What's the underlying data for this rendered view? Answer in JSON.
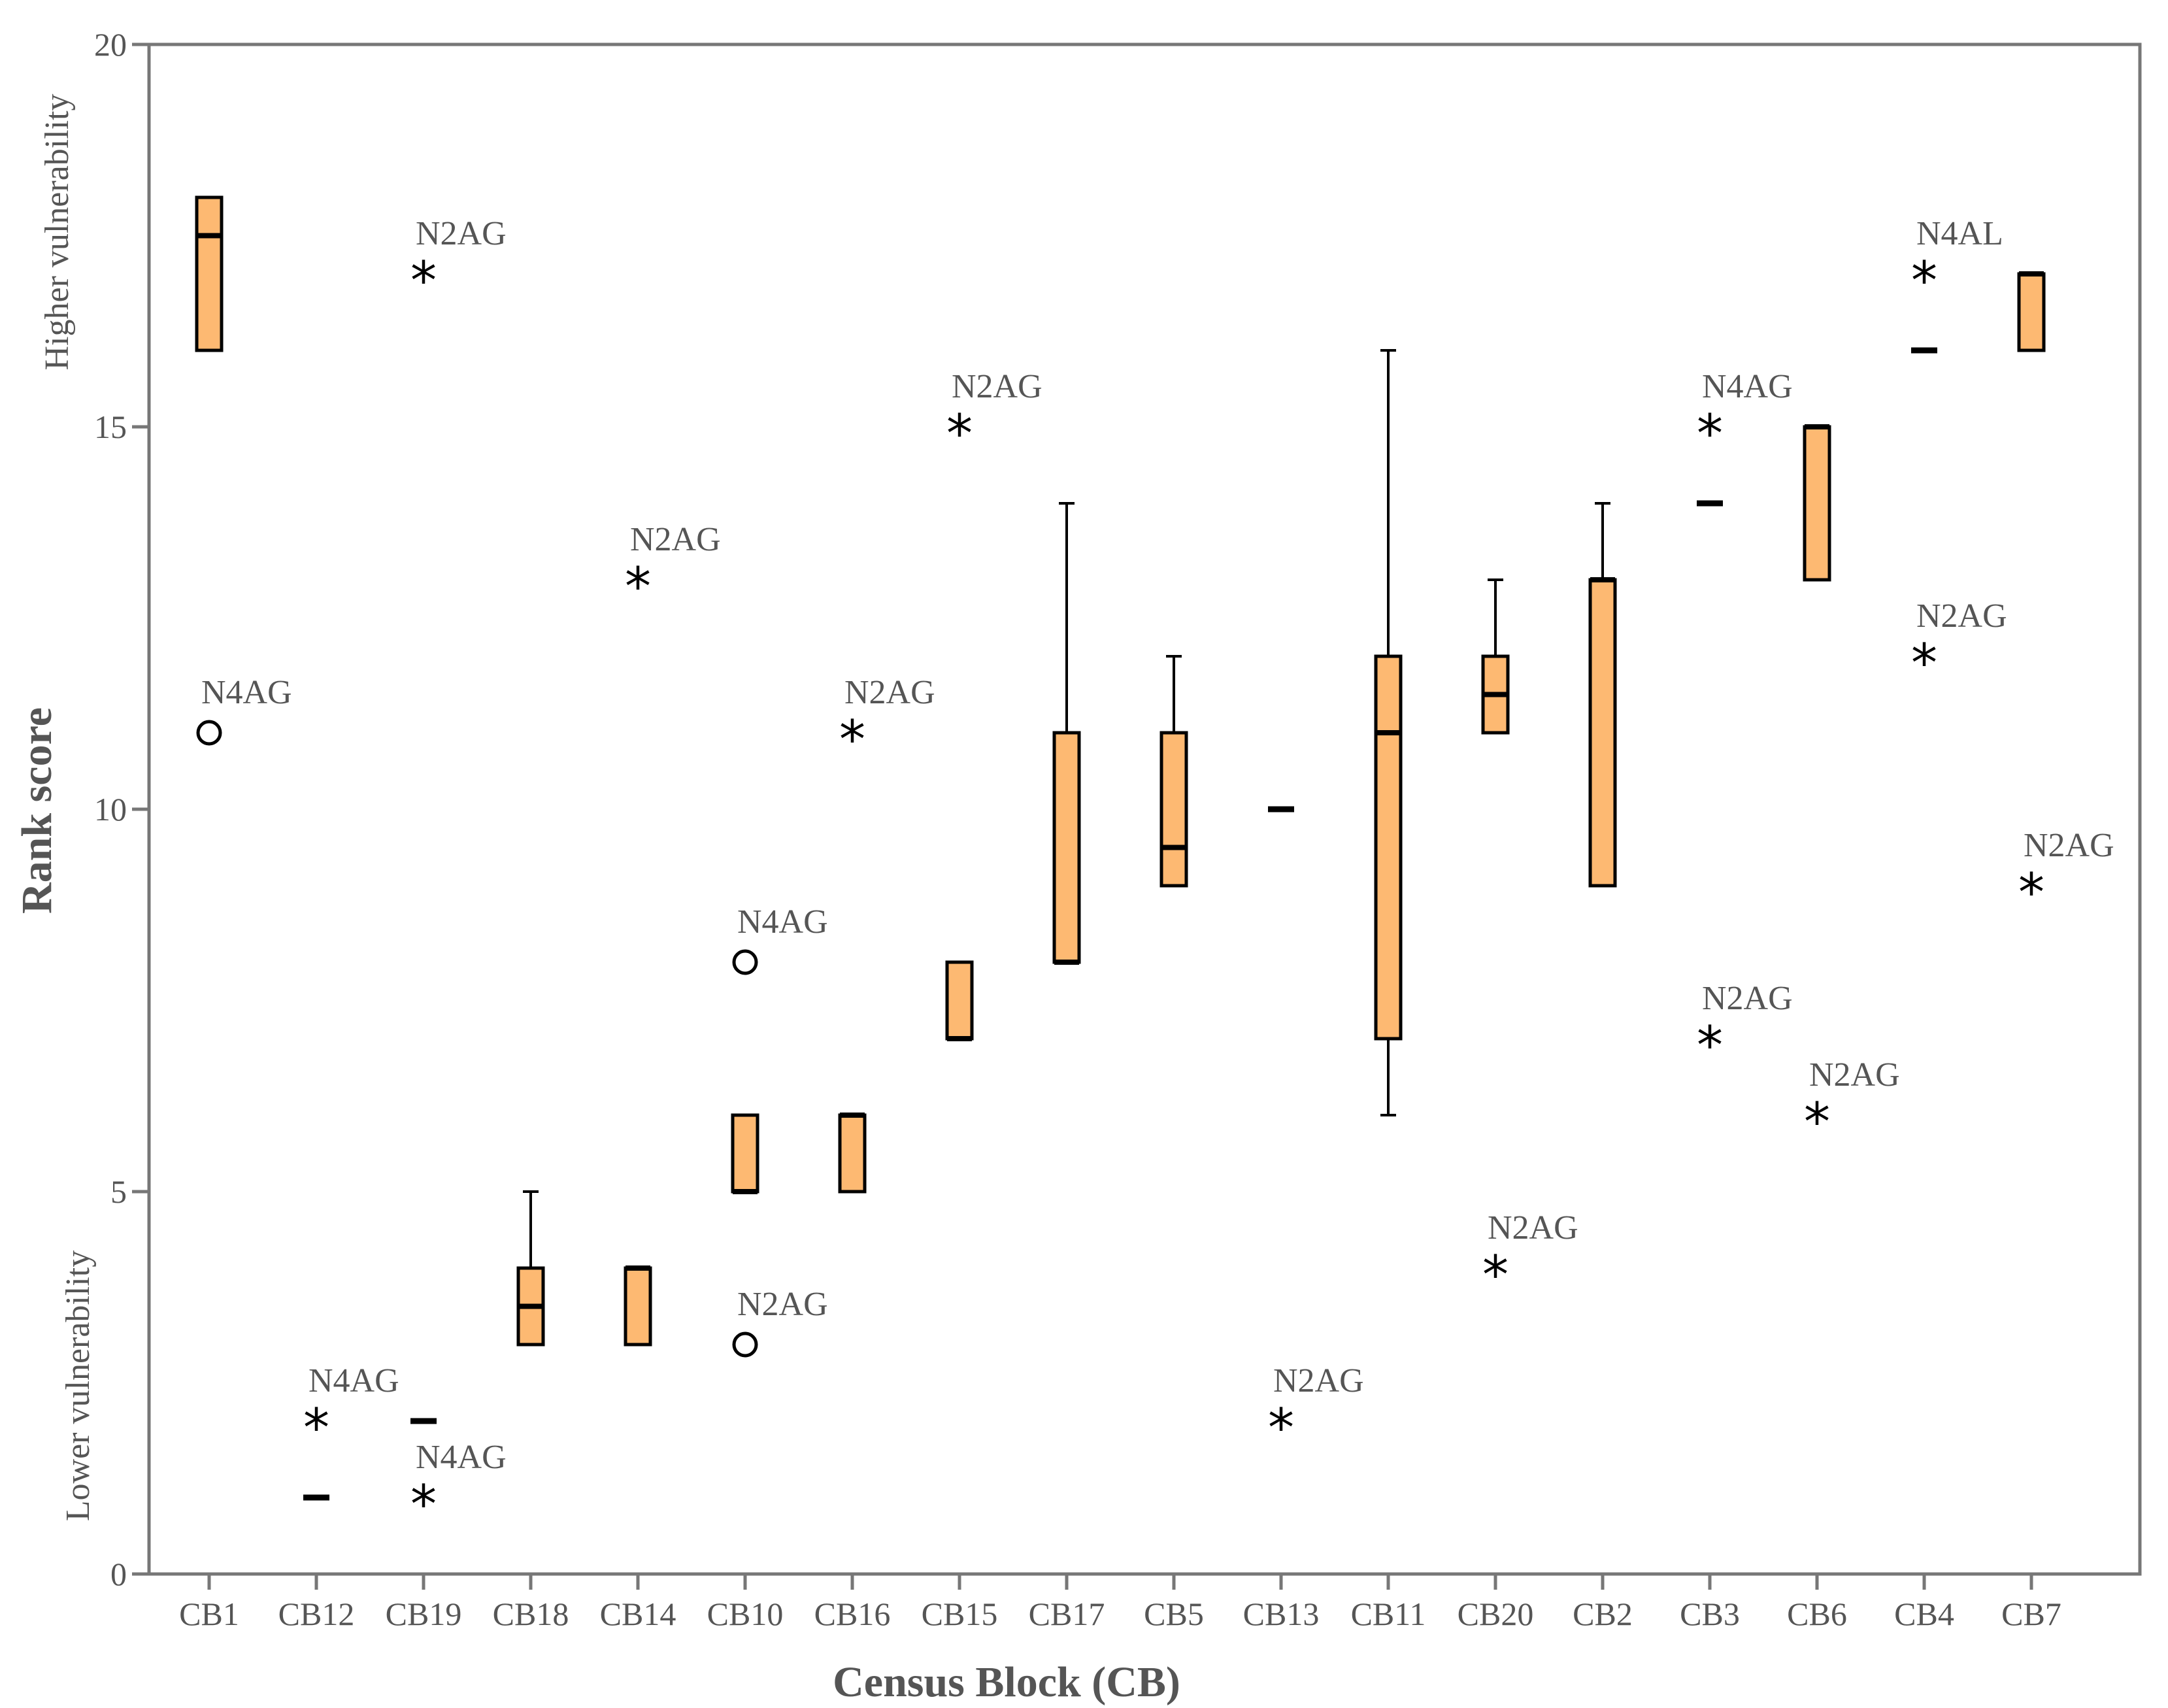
{
  "chart_data": {
    "type": "boxplot",
    "title": "",
    "xlabel": "Census Block (CB)",
    "ylabel": "Rank score",
    "y_annotations": {
      "upper": "Higher vulnerability",
      "lower": "Lower vulnerability"
    },
    "ylim": [
      0,
      20
    ],
    "yticks": [
      "0",
      "5",
      "10",
      "15",
      "20"
    ],
    "grid": false,
    "box_color": "#FDB972",
    "categories": [
      "CB1",
      "CB12",
      "CB19",
      "CB18",
      "CB14",
      "CB10",
      "CB16",
      "CB15",
      "CB17",
      "CB5",
      "CB13",
      "CB11",
      "CB20",
      "CB2",
      "CB3",
      "CB6",
      "CB4",
      "CB7"
    ],
    "boxes": [
      {
        "category": "CB1",
        "min": 16,
        "q1": 16,
        "median": 17.5,
        "q3": 18,
        "max": 18
      },
      {
        "category": "CB12",
        "min": 1,
        "q1": 1,
        "median": 1,
        "q3": 1,
        "max": 1
      },
      {
        "category": "CB19",
        "min": 2,
        "q1": 2,
        "median": 2,
        "q3": 2,
        "max": 2
      },
      {
        "category": "CB18",
        "min": 3,
        "q1": 3,
        "median": 3.5,
        "q3": 4,
        "max": 5
      },
      {
        "category": "CB14",
        "min": 3,
        "q1": 3,
        "median": 4,
        "q3": 4,
        "max": 4
      },
      {
        "category": "CB10",
        "min": 5,
        "q1": 5,
        "median": 5,
        "q3": 6,
        "max": 6
      },
      {
        "category": "CB16",
        "min": 5,
        "q1": 5,
        "median": 6,
        "q3": 6,
        "max": 6
      },
      {
        "category": "CB15",
        "min": 7,
        "q1": 7,
        "median": 7,
        "q3": 8,
        "max": 8
      },
      {
        "category": "CB17",
        "min": 8,
        "q1": 8,
        "median": 8,
        "q3": 11,
        "max": 14
      },
      {
        "category": "CB5",
        "min": 9,
        "q1": 9,
        "median": 9.5,
        "q3": 11,
        "max": 12
      },
      {
        "category": "CB13",
        "min": 10,
        "q1": 10,
        "median": 10,
        "q3": 10,
        "max": 10
      },
      {
        "category": "CB11",
        "min": 6,
        "q1": 7,
        "median": 11,
        "q3": 12,
        "max": 16
      },
      {
        "category": "CB20",
        "min": 11,
        "q1": 11,
        "median": 11.5,
        "q3": 12,
        "max": 13
      },
      {
        "category": "CB2",
        "min": 9,
        "q1": 9,
        "median": 13,
        "q3": 13,
        "max": 14
      },
      {
        "category": "CB3",
        "min": 14,
        "q1": 14,
        "median": 14,
        "q3": 14,
        "max": 14
      },
      {
        "category": "CB6",
        "min": 13,
        "q1": 13,
        "median": 15,
        "q3": 15,
        "max": 15
      },
      {
        "category": "CB4",
        "min": 16,
        "q1": 16,
        "median": 16,
        "q3": 16,
        "max": 16
      },
      {
        "category": "CB7",
        "min": 16,
        "q1": 16,
        "median": 17,
        "q3": 17,
        "max": 17
      }
    ],
    "outliers": [
      {
        "category": "CB1",
        "value": 11,
        "marker": "circle",
        "label": "N4AG"
      },
      {
        "category": "CB12",
        "value": 2,
        "marker": "star",
        "label": "N4AG"
      },
      {
        "category": "CB19",
        "value": 17,
        "marker": "star",
        "label": "N2AG"
      },
      {
        "category": "CB19",
        "value": 1,
        "marker": "star",
        "label": "N4AG"
      },
      {
        "category": "CB14",
        "value": 13,
        "marker": "star",
        "label": "N2AG"
      },
      {
        "category": "CB10",
        "value": 8,
        "marker": "circle",
        "label": "N4AG"
      },
      {
        "category": "CB10",
        "value": 3,
        "marker": "circle",
        "label": "N2AG"
      },
      {
        "category": "CB16",
        "value": 11,
        "marker": "star",
        "label": "N2AG"
      },
      {
        "category": "CB15",
        "value": 15,
        "marker": "star",
        "label": "N2AG"
      },
      {
        "category": "CB13",
        "value": 2,
        "marker": "star",
        "label": "N2AG"
      },
      {
        "category": "CB20",
        "value": 4,
        "marker": "star",
        "label": "N2AG"
      },
      {
        "category": "CB3",
        "value": 15,
        "marker": "star",
        "label": "N4AG"
      },
      {
        "category": "CB3",
        "value": 7,
        "marker": "star",
        "label": "N2AG"
      },
      {
        "category": "CB6",
        "value": 6,
        "marker": "star",
        "label": "N2AG"
      },
      {
        "category": "CB4",
        "value": 17,
        "marker": "star",
        "label": "N4AL"
      },
      {
        "category": "CB4",
        "value": 12,
        "marker": "star",
        "label": "N2AG"
      },
      {
        "category": "CB7",
        "value": 9,
        "marker": "star",
        "label": "N2AG"
      }
    ]
  }
}
